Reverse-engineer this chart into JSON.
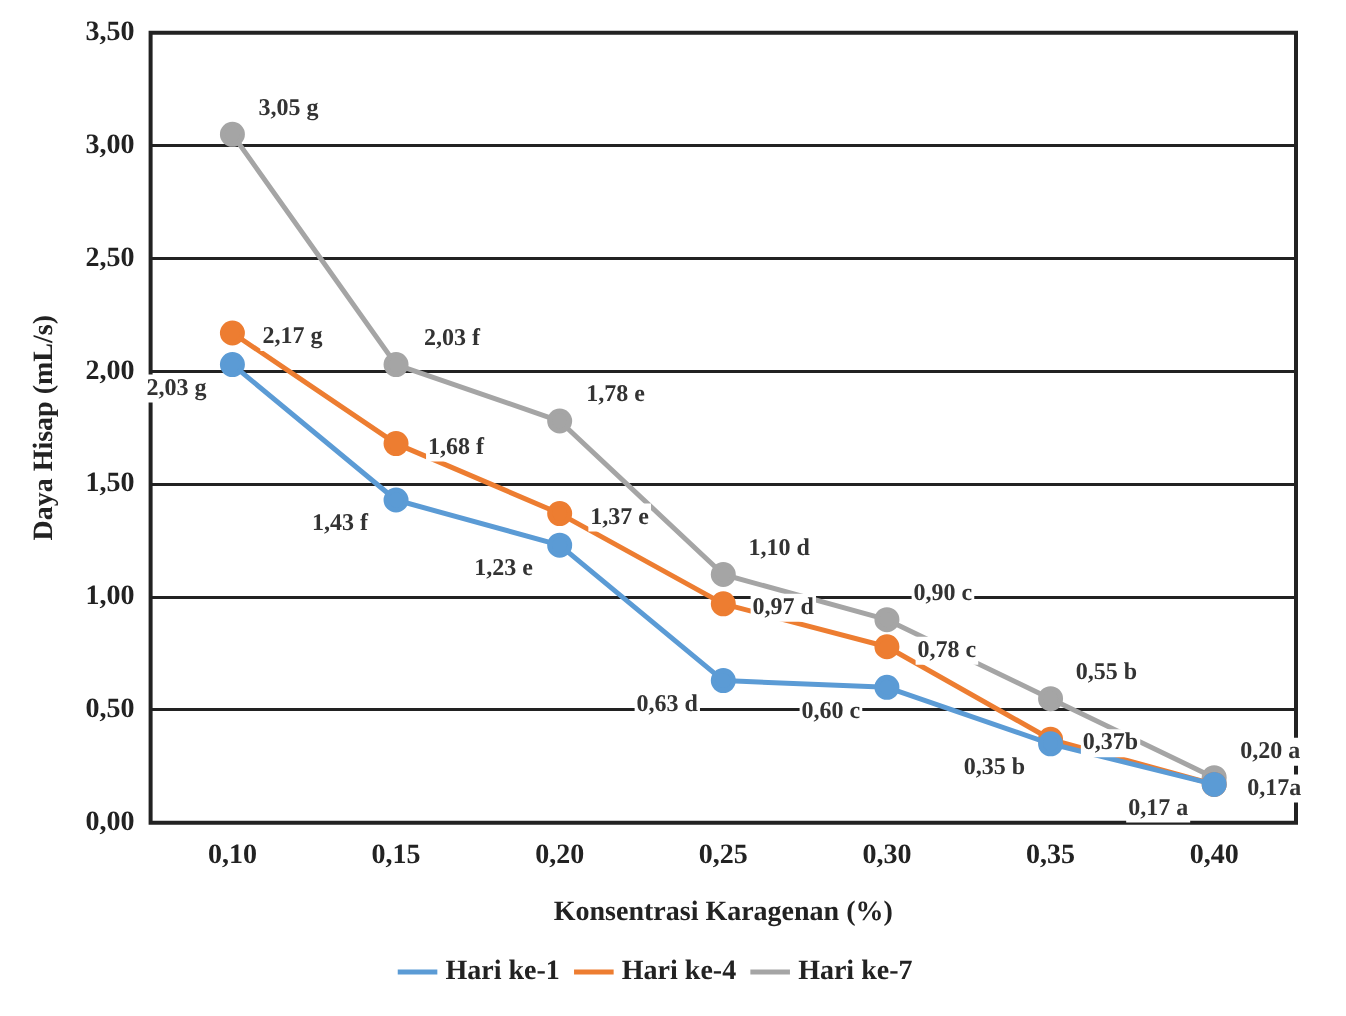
{
  "chart_data": {
    "type": "line",
    "xlabel": "Konsentrasi Karagenan (%)",
    "ylabel": "Daya Hisap (mL/s)",
    "categories": [
      "0,10",
      "0,15",
      "0,20",
      "0,25",
      "0,30",
      "0,35",
      "0,40"
    ],
    "series": [
      {
        "name": "Hari ke-1",
        "color": "#5b9bd5",
        "values": [
          2.03,
          1.43,
          1.23,
          0.63,
          0.6,
          0.35,
          0.17
        ],
        "value_labels": [
          "2,03 g",
          "1,43 f",
          "1,23 e",
          "0,63 d",
          "0,60 c",
          "0,35 b",
          "0,17 a"
        ]
      },
      {
        "name": "Hari ke-4",
        "color": "#ed7d31",
        "values": [
          2.17,
          1.68,
          1.37,
          0.97,
          0.78,
          0.37,
          0.17
        ],
        "value_labels": [
          "2,17 g",
          "1,68 f",
          "1,37 e",
          "0,97 d",
          "0,78 c",
          "0,37b",
          "0,17a"
        ]
      },
      {
        "name": "Hari ke-7",
        "color": "#a5a5a5",
        "values": [
          3.05,
          2.03,
          1.78,
          1.1,
          0.9,
          0.55,
          0.2
        ],
        "value_labels": [
          "3,05 g",
          "2,03 f",
          "1,78 e",
          "1,10 d",
          "0,90 c",
          "0,55 b",
          "0,20 a"
        ]
      }
    ],
    "ylim": [
      0,
      3.5
    ],
    "yticks": [
      {
        "value": 0,
        "label": "0,00"
      },
      {
        "value": 0.5,
        "label": "0,50"
      },
      {
        "value": 1,
        "label": "1,00"
      },
      {
        "value": 1.5,
        "label": "1,50"
      },
      {
        "value": 2,
        "label": "2,00"
      },
      {
        "value": 2.5,
        "label": "2,50"
      },
      {
        "value": 3,
        "label": "3,00"
      },
      {
        "value": 3.5,
        "label": "3,50"
      }
    ],
    "grid": "y",
    "legend": "bottom",
    "marker": "circle",
    "line_style": "solid"
  }
}
